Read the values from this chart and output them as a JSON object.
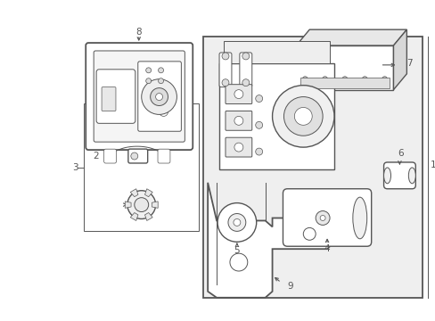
{
  "bg_color": "#ffffff",
  "lc": "#555555",
  "box_bg": "#efefef",
  "fig_width": 4.89,
  "fig_height": 3.6,
  "dpi": 100
}
